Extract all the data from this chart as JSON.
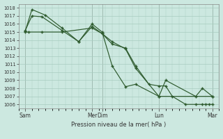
{
  "bg_color": "#cce8e0",
  "grid_color": "#a8ccbf",
  "line_color": "#2d5a2d",
  "ylabel": "Pression niveau de la mer( hPa )",
  "ylim": [
    1005.5,
    1018.5
  ],
  "xlim": [
    0,
    300
  ],
  "xtick_positions": [
    10,
    110,
    125,
    210,
    290
  ],
  "xtick_labels": [
    "Sam",
    "Mer",
    "Dim",
    "Lun",
    "Mar"
  ],
  "vline_positions": [
    10,
    110,
    125,
    210,
    290
  ],
  "series1_x": [
    10,
    15,
    35,
    65,
    110,
    125,
    140,
    160,
    175,
    195,
    210,
    220,
    230,
    250,
    265,
    275,
    280,
    285,
    290
  ],
  "series1_y": [
    1015.0,
    1015.0,
    1015.0,
    1015.0,
    1015.5,
    1014.8,
    1013.5,
    1013.0,
    1010.8,
    1008.5,
    1008.3,
    1008.3,
    1007.0,
    1006.0,
    1006.0,
    1006.0,
    1006.0,
    1006.0,
    1006.0
  ],
  "series2_x": [
    10,
    20,
    35,
    65,
    90,
    110,
    125,
    140,
    160,
    175,
    210,
    220,
    265,
    275,
    290
  ],
  "series2_y": [
    1015.2,
    1017.0,
    1016.9,
    1015.2,
    1013.8,
    1015.7,
    1014.8,
    1013.8,
    1012.9,
    1010.5,
    1007.0,
    1009.0,
    1007.0,
    1008.0,
    1007.0
  ],
  "series3_x": [
    10,
    20,
    40,
    65,
    90,
    110,
    125,
    140,
    160,
    175,
    210,
    290
  ],
  "series3_y": [
    1015.1,
    1017.8,
    1017.1,
    1015.5,
    1013.8,
    1016.0,
    1015.0,
    1010.8,
    1008.2,
    1008.5,
    1007.0,
    1007.0
  ]
}
